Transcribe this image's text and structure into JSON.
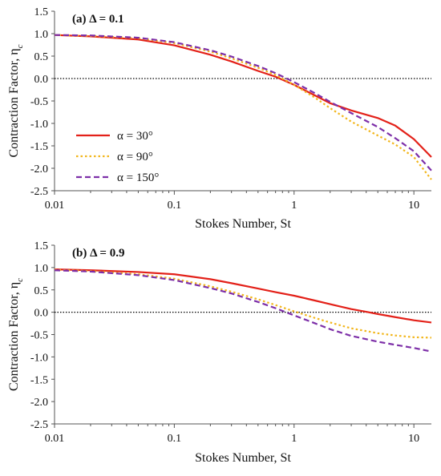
{
  "chart_data": [
    {
      "type": "line",
      "panel_label": "(a) Δ = 0.1",
      "xlabel": "Stokes Number, St",
      "ylabel": "Contraction Factor, η",
      "ylabel_subscript": "c",
      "xscale": "log",
      "xlim": [
        0.01,
        14
      ],
      "ylim": [
        -2.5,
        1.5
      ],
      "xticks": [
        0.01,
        0.1,
        1,
        10
      ],
      "xtick_labels": [
        "0.01",
        "0.1",
        "1",
        "10"
      ],
      "yticks": [
        1.5,
        1.0,
        0.5,
        0.0,
        -0.5,
        -1.0,
        -1.5,
        -2.0,
        -2.5
      ],
      "ytick_labels": [
        "1.5",
        "1.0",
        "0.5",
        "0.0",
        "-0.5",
        "-1.0",
        "-1.5",
        "-2.0",
        "-2.5"
      ],
      "reference_line": 0.0,
      "legend": "lower-left",
      "series": [
        {
          "name": "α = 30°",
          "color": "#e32119",
          "dash": "solid",
          "x": [
            0.01,
            0.02,
            0.05,
            0.1,
            0.2,
            0.3,
            0.5,
            0.7,
            1,
            1.5,
            2,
            3,
            5,
            7,
            10,
            14
          ],
          "y": [
            0.97,
            0.94,
            0.87,
            0.74,
            0.53,
            0.38,
            0.17,
            0.04,
            -0.14,
            -0.38,
            -0.55,
            -0.71,
            -0.88,
            -1.05,
            -1.35,
            -1.75
          ]
        },
        {
          "name": "α = 90°",
          "color": "#f2b61c",
          "dash": "dotted",
          "x": [
            0.01,
            0.02,
            0.05,
            0.1,
            0.2,
            0.3,
            0.5,
            0.7,
            1,
            1.5,
            2,
            3,
            5,
            7,
            10,
            14
          ],
          "y": [
            0.97,
            0.95,
            0.9,
            0.79,
            0.6,
            0.45,
            0.24,
            0.08,
            -0.14,
            -0.43,
            -0.66,
            -0.96,
            -1.27,
            -1.47,
            -1.75,
            -2.25
          ]
        },
        {
          "name": "α = 150°",
          "color": "#7d2fa8",
          "dash": "dashed",
          "x": [
            0.01,
            0.02,
            0.05,
            0.1,
            0.2,
            0.3,
            0.5,
            0.7,
            1,
            1.5,
            2,
            3,
            5,
            7,
            10,
            14
          ],
          "y": [
            0.97,
            0.96,
            0.91,
            0.81,
            0.63,
            0.49,
            0.28,
            0.12,
            -0.08,
            -0.33,
            -0.52,
            -0.77,
            -1.08,
            -1.33,
            -1.62,
            -2.05
          ]
        }
      ]
    },
    {
      "type": "line",
      "panel_label": "(b) Δ = 0.9",
      "xlabel": "Stokes Number, St",
      "ylabel": "Contraction Factor, η",
      "ylabel_subscript": "c",
      "xscale": "log",
      "xlim": [
        0.01,
        14
      ],
      "ylim": [
        -2.5,
        1.5
      ],
      "xticks": [
        0.01,
        0.1,
        1,
        10
      ],
      "xtick_labels": [
        "0.01",
        "0.1",
        "1",
        "10"
      ],
      "yticks": [
        1.5,
        1.0,
        0.5,
        0.0,
        -0.5,
        -1.0,
        -1.5,
        -2.0,
        -2.5
      ],
      "ytick_labels": [
        "1.5",
        "1.0",
        "0.5",
        "0.0",
        "-0.5",
        "-1.0",
        "-1.5",
        "-2.0",
        "-2.5"
      ],
      "reference_line": 0.0,
      "series": [
        {
          "name": "α = 30°",
          "color": "#e32119",
          "dash": "solid",
          "x": [
            0.01,
            0.02,
            0.05,
            0.1,
            0.2,
            0.3,
            0.5,
            0.7,
            1,
            1.5,
            2,
            3,
            4,
            5,
            7,
            10,
            14
          ],
          "y": [
            0.96,
            0.94,
            0.9,
            0.85,
            0.74,
            0.65,
            0.53,
            0.45,
            0.37,
            0.26,
            0.18,
            0.07,
            0.01,
            -0.04,
            -0.11,
            -0.18,
            -0.23
          ]
        },
        {
          "name": "α = 90°",
          "color": "#f2b61c",
          "dash": "dotted",
          "x": [
            0.01,
            0.02,
            0.05,
            0.1,
            0.2,
            0.3,
            0.5,
            0.7,
            1,
            1.5,
            2,
            3,
            5,
            7,
            10,
            14
          ],
          "y": [
            0.95,
            0.92,
            0.85,
            0.75,
            0.58,
            0.46,
            0.29,
            0.16,
            0.02,
            -0.13,
            -0.23,
            -0.36,
            -0.47,
            -0.52,
            -0.56,
            -0.57
          ]
        },
        {
          "name": "α = 150°",
          "color": "#7d2fa8",
          "dash": "dashed",
          "x": [
            0.01,
            0.02,
            0.05,
            0.1,
            0.2,
            0.3,
            0.5,
            0.7,
            1,
            1.5,
            2,
            3,
            5,
            7,
            10,
            14
          ],
          "y": [
            0.94,
            0.91,
            0.83,
            0.72,
            0.54,
            0.42,
            0.23,
            0.09,
            -0.07,
            -0.25,
            -0.38,
            -0.53,
            -0.66,
            -0.73,
            -0.8,
            -0.88
          ]
        }
      ]
    }
  ]
}
